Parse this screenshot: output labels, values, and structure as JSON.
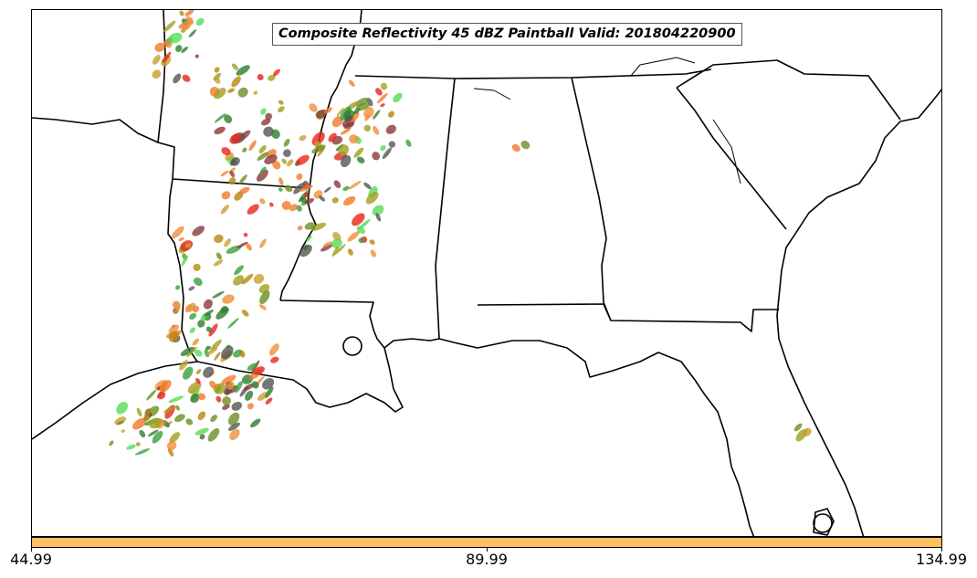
{
  "title": "Composite Reflectivity 45 dBZ Paintball Valid: 201804220900",
  "colorbar": {
    "color": "#ffc060",
    "ticks": [
      "44.99",
      "89.99",
      "134.99"
    ]
  },
  "colors": {
    "paint": [
      "#e8241a",
      "#f07a2a",
      "#f08f3a",
      "#3aa03a",
      "#2e7d2e",
      "#6b8e23",
      "#a0a020",
      "#b8860b",
      "#8b3a3a",
      "#555555",
      "#55dd55",
      "#c8a030"
    ]
  }
}
